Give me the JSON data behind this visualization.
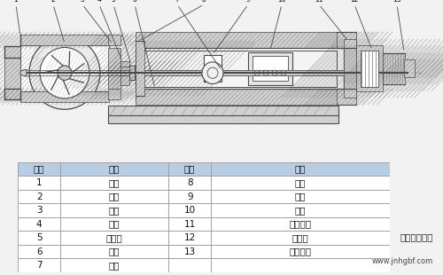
{
  "bg_color": "#f2f2f2",
  "table_header_color": "#b8cce4",
  "table_row_color": "#ffffff",
  "table_border_color": "#999999",
  "watermark_line1": "安徽江南泵阀",
  "watermark_line2": "www.jnhgbf.com",
  "headers": [
    "序号",
    "名称",
    "序号",
    "名称"
  ],
  "rows": [
    [
      "1",
      "泵体",
      "8",
      "油盖"
    ],
    [
      "2",
      "叶轮",
      "9",
      "油镜"
    ],
    [
      "3",
      "后盖",
      "10",
      "轴承"
    ],
    [
      "4",
      "压盖",
      "11",
      "轴承压盖"
    ],
    [
      "5",
      "密封件",
      "12",
      "联轴器"
    ],
    [
      "6",
      "支架",
      "13",
      "吊紧螺栓"
    ],
    [
      "7",
      "泵轴",
      "",
      ""
    ]
  ],
  "lc": "#4a4a4a",
  "hatch_color": "#7a7a7a",
  "fill_light": "#e8e8e8",
  "fill_medium": "#d0d0d0",
  "fill_dark": "#b8b8b8",
  "fill_white": "#ffffff",
  "diagram_bg": "#f8f8f8"
}
